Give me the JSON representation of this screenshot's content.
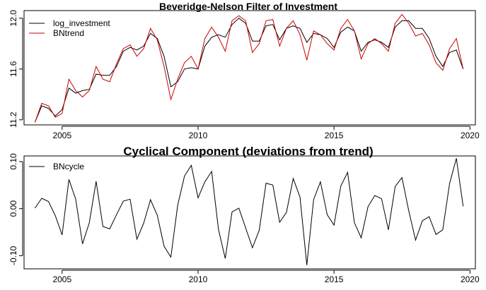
{
  "chart_data": [
    {
      "type": "line",
      "title": "Beveridge-Nelson Filter of Investment",
      "xlabel": "",
      "ylabel": "",
      "xlim": [
        2003.6,
        2020.2
      ],
      "ylim": [
        11.16,
        12.06
      ],
      "xticks": [
        2005,
        2010,
        2015,
        2020
      ],
      "xtick_labels": [
        "2005",
        "2010",
        "2015",
        "2020"
      ],
      "yticks": [
        11.2,
        11.6,
        12.0
      ],
      "ytick_labels": [
        "11.2",
        "11.6",
        "12.0"
      ],
      "legend": {
        "position": "top-left",
        "entries": [
          "log_investment",
          "BNtrend"
        ]
      },
      "grid": false,
      "series": [
        {
          "name": "log_investment",
          "color": "#000000",
          "x": [
            2004.0,
            2004.25,
            2004.5,
            2004.75,
            2005.0,
            2005.25,
            2005.5,
            2005.75,
            2006.0,
            2006.25,
            2006.5,
            2006.75,
            2007.0,
            2007.25,
            2007.5,
            2007.75,
            2008.0,
            2008.25,
            2008.5,
            2008.75,
            2009.0,
            2009.25,
            2009.5,
            2009.75,
            2010.0,
            2010.25,
            2010.5,
            2010.75,
            2011.0,
            2011.25,
            2011.5,
            2011.75,
            2012.0,
            2012.25,
            2012.5,
            2012.75,
            2013.0,
            2013.25,
            2013.5,
            2013.75,
            2014.0,
            2014.25,
            2014.5,
            2014.75,
            2015.0,
            2015.25,
            2015.5,
            2015.75,
            2016.0,
            2016.25,
            2016.5,
            2016.75,
            2017.0,
            2017.25,
            2017.5,
            2017.75,
            2018.0,
            2018.25,
            2018.5,
            2018.75,
            2019.0,
            2019.25,
            2019.5,
            2019.75
          ],
          "values": [
            11.18,
            11.31,
            11.29,
            11.23,
            11.28,
            11.45,
            11.41,
            11.43,
            11.44,
            11.56,
            11.55,
            11.55,
            11.62,
            11.74,
            11.77,
            11.75,
            11.78,
            11.88,
            11.84,
            11.7,
            11.46,
            11.5,
            11.6,
            11.61,
            11.6,
            11.78,
            11.85,
            11.87,
            11.85,
            11.95,
            12.0,
            11.96,
            11.82,
            11.82,
            11.94,
            11.95,
            11.83,
            11.92,
            11.94,
            11.92,
            11.81,
            11.88,
            11.87,
            11.84,
            11.77,
            11.89,
            11.93,
            11.9,
            11.74,
            11.81,
            11.83,
            11.81,
            11.77,
            11.93,
            11.98,
            11.98,
            11.92,
            11.92,
            11.84,
            11.7,
            11.62,
            11.73,
            11.75,
            11.6
          ]
        },
        {
          "name": "BNtrend",
          "color": "#cc0000",
          "x": [
            2004.0,
            2004.25,
            2004.5,
            2004.75,
            2005.0,
            2005.25,
            2005.5,
            2005.75,
            2006.0,
            2006.25,
            2006.5,
            2006.75,
            2007.0,
            2007.25,
            2007.5,
            2007.75,
            2008.0,
            2008.25,
            2008.5,
            2008.75,
            2009.0,
            2009.25,
            2009.5,
            2009.75,
            2010.0,
            2010.25,
            2010.5,
            2010.75,
            2011.0,
            2011.25,
            2011.5,
            2011.75,
            2012.0,
            2012.25,
            2012.5,
            2012.75,
            2013.0,
            2013.25,
            2013.5,
            2013.75,
            2014.0,
            2014.25,
            2014.5,
            2014.75,
            2015.0,
            2015.25,
            2015.5,
            2015.75,
            2016.0,
            2016.25,
            2016.5,
            2016.75,
            2017.0,
            2017.25,
            2017.5,
            2017.75,
            2018.0,
            2018.25,
            2018.5,
            2018.75,
            2019.0,
            2019.25,
            2019.5,
            2019.75
          ],
          "values": [
            11.18,
            11.33,
            11.31,
            11.22,
            11.25,
            11.52,
            11.43,
            11.38,
            11.43,
            11.62,
            11.52,
            11.5,
            11.64,
            11.76,
            11.79,
            11.7,
            11.76,
            11.92,
            11.83,
            11.62,
            11.36,
            11.52,
            11.65,
            11.7,
            11.6,
            11.84,
            11.93,
            11.85,
            11.74,
            11.98,
            12.02,
            11.98,
            11.73,
            11.8,
            11.98,
            11.99,
            11.78,
            11.92,
            11.98,
            11.87,
            11.67,
            11.9,
            11.87,
            11.8,
            11.75,
            11.92,
            11.99,
            11.9,
            11.68,
            11.8,
            11.84,
            11.8,
            11.74,
            11.96,
            12.03,
            11.96,
            11.86,
            11.88,
            11.79,
            11.65,
            11.59,
            11.76,
            11.84,
            11.6
          ]
        }
      ]
    },
    {
      "type": "line",
      "title": "Cyclical Component (deviations from trend)",
      "xlabel": "",
      "ylabel": "",
      "xlim": [
        2003.6,
        2020.2
      ],
      "ylim": [
        -0.128,
        0.112
      ],
      "xticks": [
        2005,
        2010,
        2015,
        2020
      ],
      "xtick_labels": [
        "2005",
        "2010",
        "2015",
        "2020"
      ],
      "yticks": [
        -0.1,
        0.0,
        0.1
      ],
      "ytick_labels": [
        "-0.10",
        "0.00",
        "0.10"
      ],
      "legend": {
        "position": "top-left",
        "entries": [
          "BNcycle"
        ]
      },
      "grid": false,
      "series": [
        {
          "name": "BNcycle",
          "color": "#000000",
          "x": [
            2004.0,
            2004.25,
            2004.5,
            2004.75,
            2005.0,
            2005.25,
            2005.5,
            2005.75,
            2006.0,
            2006.25,
            2006.5,
            2006.75,
            2007.0,
            2007.25,
            2007.5,
            2007.75,
            2008.0,
            2008.25,
            2008.5,
            2008.75,
            2009.0,
            2009.25,
            2009.5,
            2009.75,
            2010.0,
            2010.25,
            2010.5,
            2010.75,
            2011.0,
            2011.25,
            2011.5,
            2011.75,
            2012.0,
            2012.25,
            2012.5,
            2012.75,
            2013.0,
            2013.25,
            2013.5,
            2013.75,
            2014.0,
            2014.25,
            2014.5,
            2014.75,
            2015.0,
            2015.25,
            2015.5,
            2015.75,
            2016.0,
            2016.25,
            2016.5,
            2016.75,
            2017.0,
            2017.25,
            2017.5,
            2017.75,
            2018.0,
            2018.25,
            2018.5,
            2018.75,
            2019.0,
            2019.25,
            2019.5,
            2019.75
          ],
          "values": [
            0.001,
            0.022,
            0.015,
            -0.015,
            -0.056,
            0.062,
            0.02,
            -0.075,
            -0.03,
            0.058,
            -0.038,
            -0.043,
            -0.013,
            0.016,
            0.02,
            -0.065,
            -0.031,
            0.019,
            -0.014,
            -0.08,
            -0.103,
            0.007,
            0.069,
            0.092,
            0.023,
            0.057,
            0.079,
            -0.044,
            -0.106,
            -0.007,
            0.001,
            -0.041,
            -0.083,
            -0.046,
            0.054,
            0.05,
            -0.029,
            -0.008,
            0.064,
            0.024,
            -0.12,
            0.019,
            0.057,
            -0.013,
            -0.035,
            0.048,
            0.077,
            -0.03,
            -0.062,
            0.004,
            0.028,
            0.021,
            -0.045,
            0.047,
            0.066,
            -0.005,
            -0.067,
            -0.026,
            -0.017,
            -0.055,
            -0.045,
            0.053,
            0.107,
            0.005
          ]
        }
      ]
    }
  ]
}
